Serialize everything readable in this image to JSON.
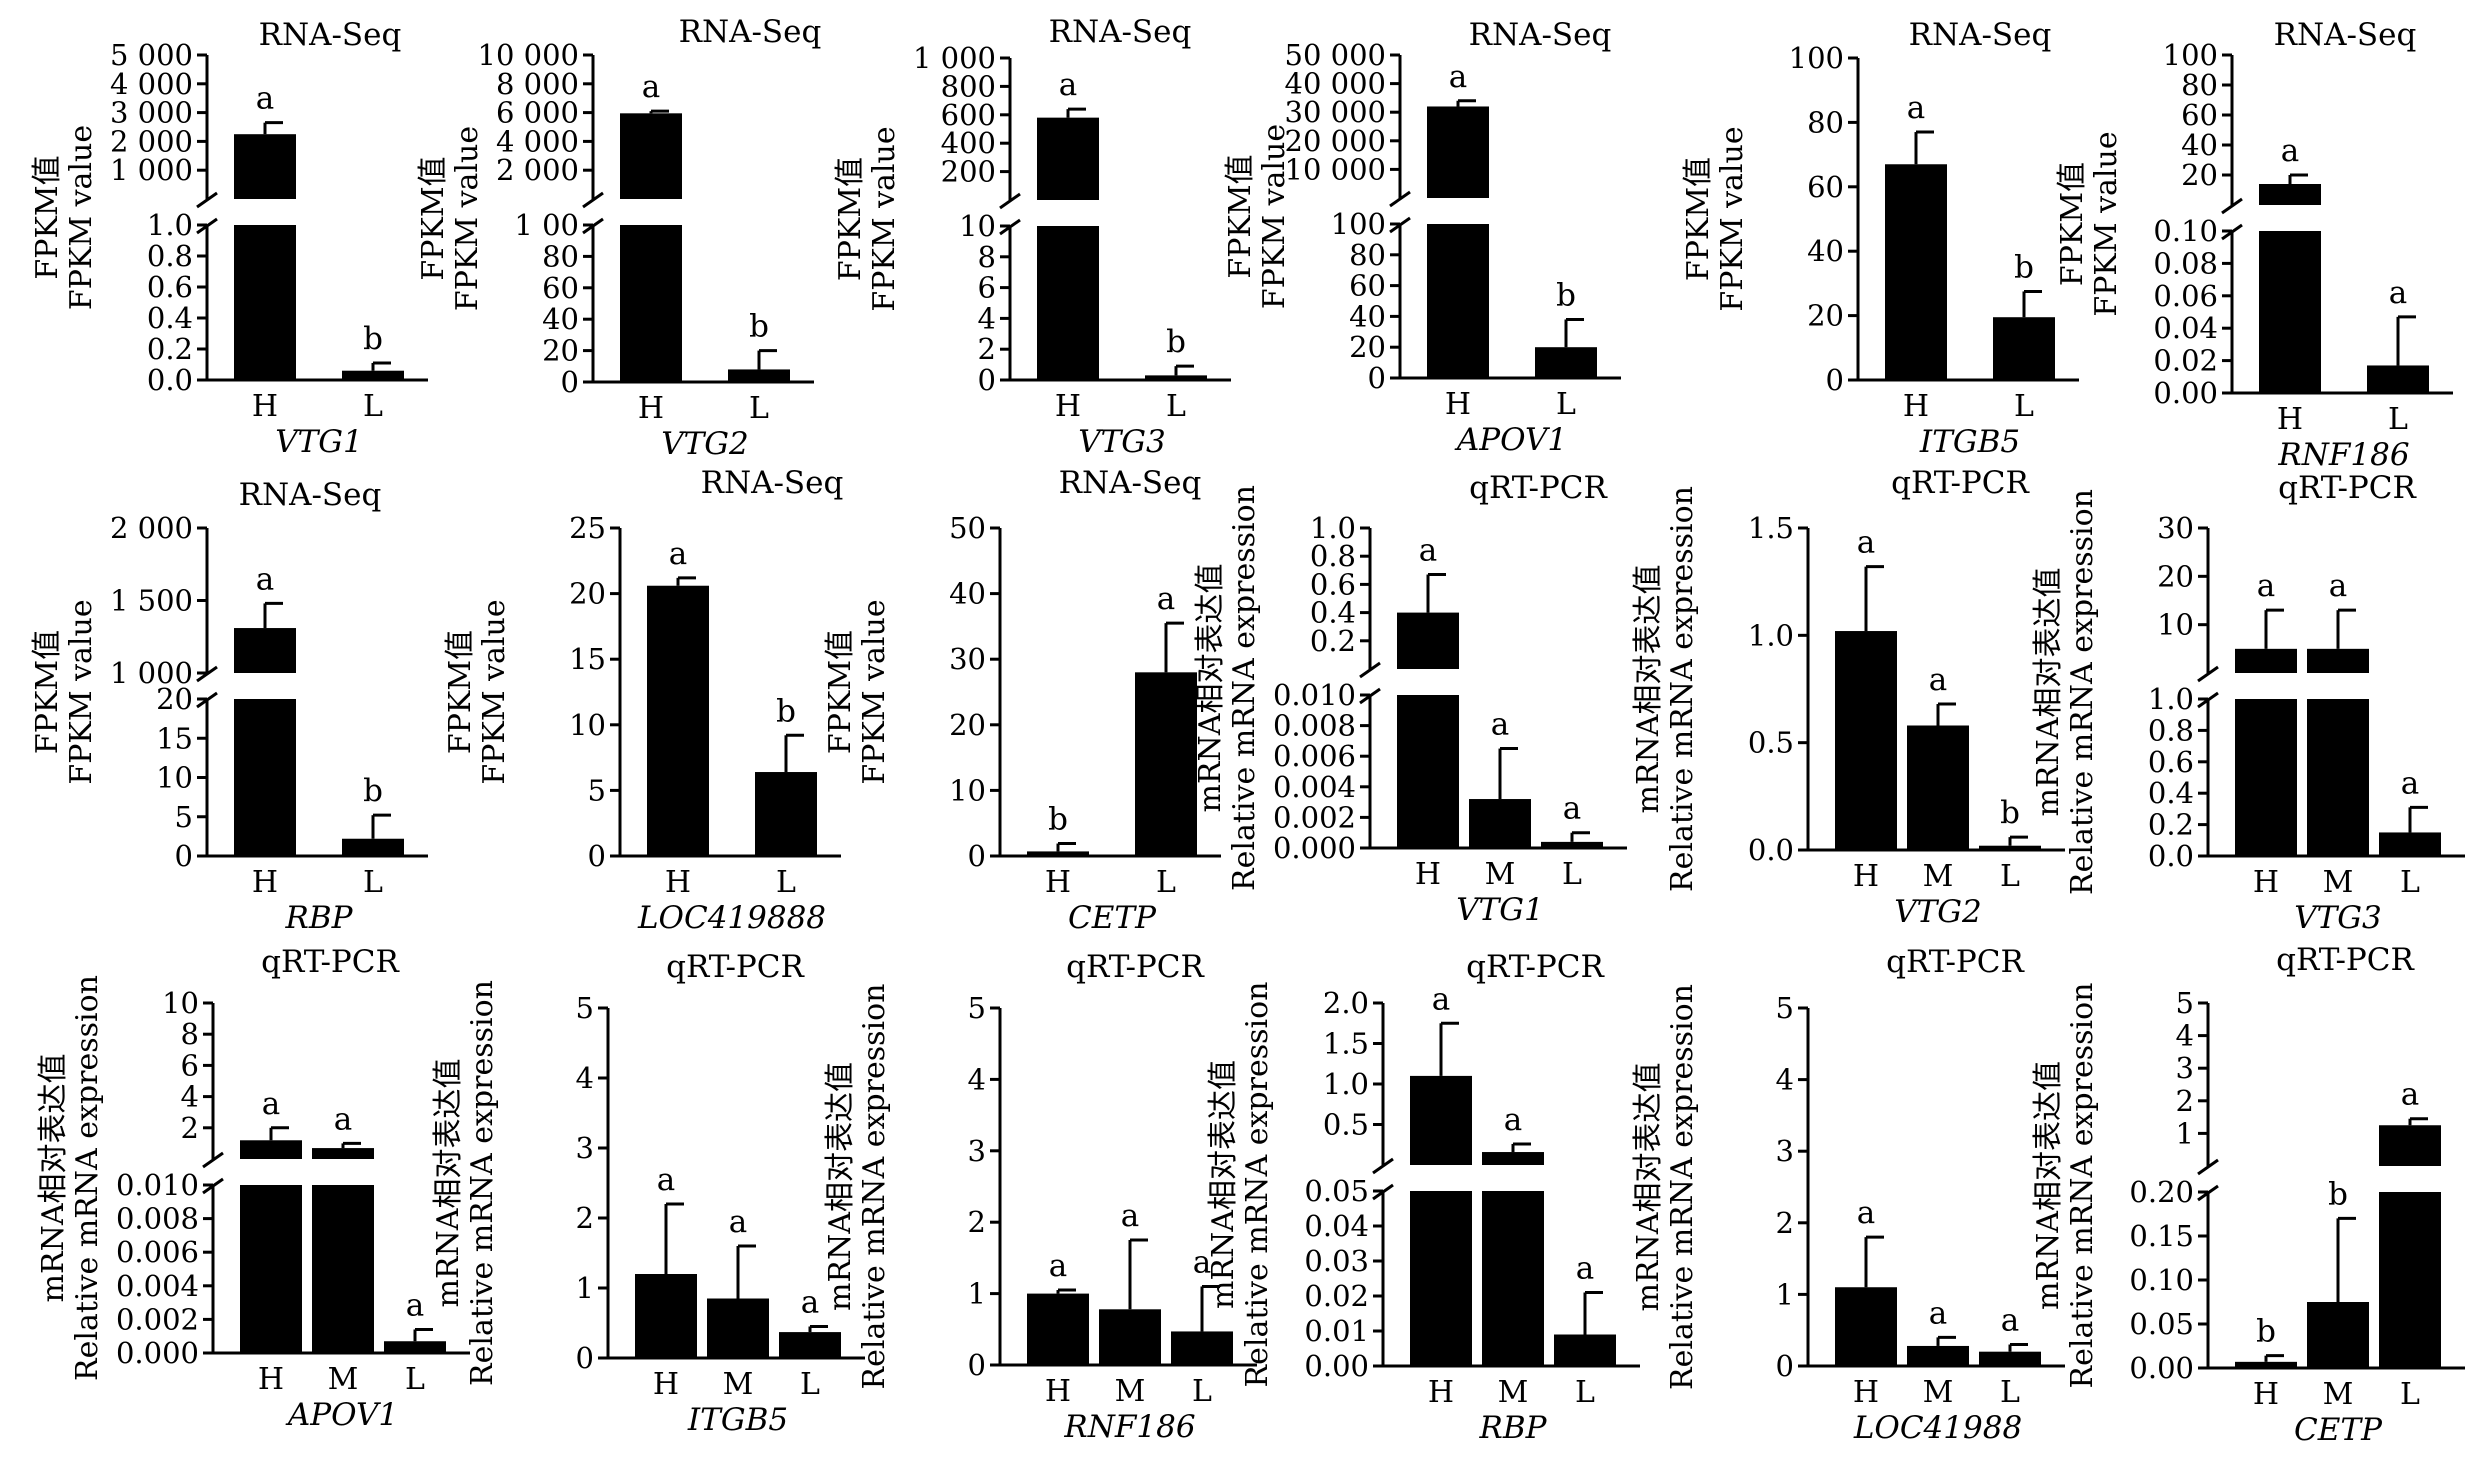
{
  "chart_data": [
    {
      "type": "bar",
      "title": "RNA-Seq",
      "gene": "VTG1",
      "ylabel": [
        "FPKM值",
        "FPKM value"
      ],
      "categories": [
        "H",
        "L"
      ],
      "values": [
        2250,
        0.06
      ],
      "errors": [
        400,
        0.05
      ],
      "letters": [
        "a",
        "b"
      ],
      "upper": {
        "ylim": [
          0,
          5000
        ],
        "ticks": [
          1000,
          2000,
          3000,
          4000,
          5000
        ],
        "tick_labels": [
          "1 000",
          "2 000",
          "3 000",
          "4 000",
          "5 000"
        ]
      },
      "lower": {
        "ylim": [
          0,
          1.0
        ],
        "ticks": [
          0,
          0.2,
          0.4,
          0.6,
          0.8,
          1.0
        ],
        "tick_labels": [
          "0.0",
          "0.2",
          "0.4",
          "0.6",
          "0.8",
          "1.0"
        ]
      }
    },
    {
      "type": "bar",
      "title": "RNA-Seq",
      "gene": "VTG2",
      "ylabel": [
        "FPKM值",
        "FPKM value"
      ],
      "categories": [
        "H",
        "L"
      ],
      "values": [
        5950,
        8
      ],
      "errors": [
        150,
        12
      ],
      "letters": [
        "a",
        "b"
      ],
      "upper": {
        "ylim": [
          0,
          10000
        ],
        "ticks": [
          2000,
          4000,
          6000,
          8000,
          10000
        ],
        "tick_labels": [
          "2 000",
          "4 000",
          "6 000",
          "8 000",
          "10 000"
        ]
      },
      "lower": {
        "ylim": [
          0,
          100
        ],
        "ticks": [
          0,
          20,
          40,
          60,
          80,
          100
        ],
        "tick_labels": [
          "0",
          "20",
          "40",
          "60",
          "80",
          "1 00"
        ]
      }
    },
    {
      "type": "bar",
      "title": "RNA-Seq",
      "gene": "VTG3",
      "ylabel": [
        "FPKM值",
        "FPKM value"
      ],
      "categories": [
        "H",
        "L"
      ],
      "values": [
        580,
        0.3
      ],
      "errors": [
        60,
        0.6
      ],
      "letters": [
        "a",
        "b"
      ],
      "upper": {
        "ylim": [
          0,
          1000
        ],
        "ticks": [
          200,
          400,
          600,
          800,
          1000
        ],
        "tick_labels": [
          "200",
          "400",
          "600",
          "800",
          "1 000"
        ]
      },
      "lower": {
        "ylim": [
          0,
          10
        ],
        "ticks": [
          0,
          2,
          4,
          6,
          8,
          10
        ],
        "tick_labels": [
          "0",
          "2",
          "4",
          "6",
          "8",
          "10"
        ]
      }
    },
    {
      "type": "bar",
      "title": "RNA-Seq",
      "gene": "APOV1",
      "ylabel": [
        "FPKM值",
        "FPKM value"
      ],
      "categories": [
        "H",
        "L"
      ],
      "values": [
        32000,
        20
      ],
      "errors": [
        2000,
        18
      ],
      "letters": [
        "a",
        "b"
      ],
      "upper": {
        "ylim": [
          0,
          50000
        ],
        "ticks": [
          10000,
          20000,
          30000,
          40000,
          50000
        ],
        "tick_labels": [
          "10 000",
          "20 000",
          "30 000",
          "40 000",
          "50 000"
        ]
      },
      "lower": {
        "ylim": [
          0,
          100
        ],
        "ticks": [
          0,
          20,
          40,
          60,
          80,
          100
        ],
        "tick_labels": [
          "0",
          "20",
          "40",
          "60",
          "80",
          "100"
        ]
      }
    },
    {
      "type": "bar",
      "title": "RNA-Seq",
      "gene": "ITGB5",
      "ylabel": [
        "FPKM值",
        "FPKM value"
      ],
      "categories": [
        "H",
        "L"
      ],
      "values": [
        67,
        19.5
      ],
      "errors": [
        10,
        8
      ],
      "letters": [
        "a",
        "b"
      ],
      "ylim": [
        0,
        100
      ],
      "ticks": [
        0,
        20,
        40,
        60,
        80,
        100
      ],
      "tick_labels": [
        "0",
        "20",
        "40",
        "60",
        "80",
        "100"
      ]
    },
    {
      "type": "bar",
      "title": "RNA-Seq",
      "gene": "RNF186",
      "ylabel": [
        "FPKM值",
        "FPKM value"
      ],
      "categories": [
        "H",
        "L"
      ],
      "values": [
        14,
        0.017
      ],
      "errors": [
        6,
        0.03
      ],
      "letters": [
        "a",
        "a"
      ],
      "upper": {
        "ylim": [
          0,
          100
        ],
        "ticks": [
          20,
          40,
          60,
          80,
          100
        ],
        "tick_labels": [
          "20",
          "40",
          "60",
          "80",
          "100"
        ]
      },
      "lower": {
        "ylim": [
          0,
          0.1
        ],
        "ticks": [
          0,
          0.02,
          0.04,
          0.06,
          0.08,
          0.1
        ],
        "tick_labels": [
          "0.00",
          "0.02",
          "0.04",
          "0.06",
          "0.08",
          "0.10"
        ]
      }
    },
    {
      "type": "bar",
      "title": "RNA-Seq",
      "gene": "RBP",
      "ylabel": [
        "FPKM值",
        "FPKM value"
      ],
      "categories": [
        "H",
        "L"
      ],
      "values": [
        1310,
        2.2
      ],
      "errors": [
        170,
        3
      ],
      "letters": [
        "a",
        "b"
      ],
      "upper": {
        "ylim": [
          1000,
          2000
        ],
        "ticks": [
          1000,
          1500,
          2000
        ],
        "tick_labels": [
          "1 000",
          "1 500",
          "2 000"
        ]
      },
      "lower": {
        "ylim": [
          0,
          20
        ],
        "ticks": [
          0,
          5,
          10,
          15,
          20
        ],
        "tick_labels": [
          "0",
          "5",
          "10",
          "15",
          "20"
        ]
      }
    },
    {
      "type": "bar",
      "title": "RNA-Seq",
      "gene": "LOC419888",
      "ylabel": [
        "FPKM值",
        "FPKM value"
      ],
      "categories": [
        "H",
        "L"
      ],
      "values": [
        20.6,
        6.4
      ],
      "errors": [
        0.6,
        2.8
      ],
      "letters": [
        "a",
        "b"
      ],
      "ylim": [
        0,
        25
      ],
      "ticks": [
        0,
        5,
        10,
        15,
        20,
        25
      ],
      "tick_labels": [
        "0",
        "5",
        "10",
        "15",
        "20",
        "25"
      ]
    },
    {
      "type": "bar",
      "title": "RNA-Seq",
      "gene": "CETP",
      "ylabel": [
        "FPKM值",
        "FPKM value"
      ],
      "categories": [
        "H",
        "L"
      ],
      "values": [
        0.7,
        28
      ],
      "errors": [
        1.2,
        7.5
      ],
      "letters": [
        "b",
        "a"
      ],
      "ylim": [
        0,
        50
      ],
      "ticks": [
        0,
        10,
        20,
        30,
        40,
        50
      ],
      "tick_labels": [
        "0",
        "10",
        "20",
        "30",
        "40",
        "50"
      ]
    },
    {
      "type": "bar",
      "title": "qRT-PCR",
      "gene": "VTG1",
      "ylabel": [
        "mRNA相对表达值",
        "Relative mRNA expression"
      ],
      "categories": [
        "H",
        "M",
        "L"
      ],
      "values": [
        0.4,
        0.0032,
        0.0004
      ],
      "errors": [
        0.27,
        0.0033,
        0.0006
      ],
      "letters": [
        "a",
        "a",
        "a"
      ],
      "upper": {
        "ylim": [
          0,
          1.0
        ],
        "ticks": [
          0.2,
          0.4,
          0.6,
          0.8,
          1.0
        ],
        "tick_labels": [
          "0.2",
          "0.4",
          "0.6",
          "0.8",
          "1.0"
        ]
      },
      "lower": {
        "ylim": [
          0,
          0.01
        ],
        "ticks": [
          0,
          0.002,
          0.004,
          0.006,
          0.008,
          0.01
        ],
        "tick_labels": [
          "0.000",
          "0.002",
          "0.004",
          "0.006",
          "0.008",
          "0.010"
        ]
      }
    },
    {
      "type": "bar",
      "title": "qRT-PCR",
      "gene": "VTG2",
      "ylabel": [
        "mRNA相对表达值",
        "Relative mRNA expression"
      ],
      "categories": [
        "H",
        "M",
        "L"
      ],
      "values": [
        1.02,
        0.58,
        0.02
      ],
      "errors": [
        0.3,
        0.1,
        0.04
      ],
      "letters": [
        "a",
        "a",
        "b"
      ],
      "ylim": [
        0,
        1.5
      ],
      "ticks": [
        0,
        0.5,
        1.0,
        1.5
      ],
      "tick_labels": [
        "0.0",
        "0.5",
        "1.0",
        "1.5"
      ]
    },
    {
      "type": "bar",
      "title": "qRT-PCR",
      "gene": "VTG3",
      "ylabel": [
        "mRNA相对表达值",
        "Relative mRNA expression"
      ],
      "categories": [
        "H",
        "M",
        "L"
      ],
      "values": [
        5,
        5,
        0.15
      ],
      "errors": [
        8,
        8,
        0.16
      ],
      "letters": [
        "a",
        "a",
        "a"
      ],
      "upper": {
        "ylim": [
          0,
          30
        ],
        "ticks": [
          10,
          20,
          30
        ],
        "tick_labels": [
          "10",
          "20",
          "30"
        ]
      },
      "lower": {
        "ylim": [
          0,
          1.0
        ],
        "ticks": [
          0,
          0.2,
          0.4,
          0.6,
          0.8,
          1.0
        ],
        "tick_labels": [
          "0.0",
          "0.2",
          "0.4",
          "0.6",
          "0.8",
          "1.0"
        ]
      }
    },
    {
      "type": "bar",
      "title": "qRT-PCR",
      "gene": "APOV1",
      "ylabel": [
        "mRNA相对表达值",
        "Relative mRNA expression"
      ],
      "categories": [
        "H",
        "M",
        "L"
      ],
      "values": [
        1.2,
        0.7,
        0.0007
      ],
      "errors": [
        0.8,
        0.3,
        0.0007
      ],
      "letters": [
        "a",
        "a",
        "a"
      ],
      "upper": {
        "ylim": [
          0,
          10
        ],
        "ticks": [
          2,
          4,
          6,
          8,
          10
        ],
        "tick_labels": [
          "2",
          "4",
          "6",
          "8",
          "10"
        ]
      },
      "lower": {
        "ylim": [
          0,
          0.01
        ],
        "ticks": [
          0,
          0.002,
          0.004,
          0.006,
          0.008,
          0.01
        ],
        "tick_labels": [
          "0.000",
          "0.002",
          "0.004",
          "0.006",
          "0.008",
          "0.010"
        ]
      }
    },
    {
      "type": "bar",
      "title": "qRT-PCR",
      "gene": "ITGB5",
      "ylabel": [
        "mRNA相对表达值",
        "Relative mRNA expression"
      ],
      "categories": [
        "H",
        "M",
        "L"
      ],
      "values": [
        1.2,
        0.85,
        0.37
      ],
      "errors": [
        1.0,
        0.75,
        0.08
      ],
      "letters": [
        "a",
        "a",
        "a"
      ],
      "ylim": [
        0,
        5
      ],
      "ticks": [
        0,
        1,
        2,
        3,
        4,
        5
      ],
      "tick_labels": [
        "0",
        "1",
        "2",
        "3",
        "4",
        "5"
      ]
    },
    {
      "type": "bar",
      "title": "qRT-PCR",
      "gene": "RNF186",
      "ylabel": [
        "mRNA相对表达值",
        "Relative mRNA expression"
      ],
      "categories": [
        "H",
        "M",
        "L"
      ],
      "values": [
        1.0,
        0.78,
        0.47
      ],
      "errors": [
        0.05,
        0.97,
        0.63
      ],
      "letters": [
        "a",
        "a",
        "a"
      ],
      "ylim": [
        0,
        5
      ],
      "ticks": [
        0,
        1,
        2,
        3,
        4,
        5
      ],
      "tick_labels": [
        "0",
        "1",
        "2",
        "3",
        "4",
        "5"
      ]
    },
    {
      "type": "bar",
      "title": "qRT-PCR",
      "gene": "RBP",
      "ylabel": [
        "mRNA相对表达值",
        "Relative mRNA expression"
      ],
      "categories": [
        "H",
        "M",
        "L"
      ],
      "values": [
        1.1,
        0.16,
        0.009
      ],
      "errors": [
        0.65,
        0.1,
        0.012
      ],
      "letters": [
        "a",
        "a",
        "a"
      ],
      "upper": {
        "ylim": [
          0,
          2.0
        ],
        "ticks": [
          0.5,
          1.0,
          1.5,
          2.0
        ],
        "tick_labels": [
          "0.5",
          "1.0",
          "1.5",
          "2.0"
        ]
      },
      "lower": {
        "ylim": [
          0,
          0.05
        ],
        "ticks": [
          0,
          0.01,
          0.02,
          0.03,
          0.04,
          0.05
        ],
        "tick_labels": [
          "0.00",
          "0.01",
          "0.02",
          "0.03",
          "0.04",
          "0.05"
        ]
      }
    },
    {
      "type": "bar",
      "title": "qRT-PCR",
      "gene": "LOC41988",
      "ylabel": [
        "mRNA相对表达值",
        "Relative mRNA expression"
      ],
      "categories": [
        "H",
        "M",
        "L"
      ],
      "values": [
        1.1,
        0.28,
        0.2
      ],
      "errors": [
        0.7,
        0.12,
        0.1
      ],
      "letters": [
        "a",
        "a",
        "a"
      ],
      "ylim": [
        0,
        5
      ],
      "ticks": [
        0,
        1,
        2,
        3,
        4,
        5
      ],
      "tick_labels": [
        "0",
        "1",
        "2",
        "3",
        "4",
        "5"
      ]
    },
    {
      "type": "bar",
      "title": "qRT-PCR",
      "gene": "CETP",
      "ylabel": [
        "mRNA相对表达值",
        "Relative mRNA expression"
      ],
      "categories": [
        "H",
        "M",
        "L"
      ],
      "values": [
        0.007,
        0.075,
        1.25
      ],
      "errors": [
        0.007,
        0.095,
        0.2
      ],
      "letters": [
        "b",
        "b",
        "a"
      ],
      "upper": {
        "ylim": [
          0,
          5
        ],
        "ticks": [
          1,
          2,
          3,
          4,
          5
        ],
        "tick_labels": [
          "1",
          "2",
          "3",
          "4",
          "5"
        ]
      },
      "lower": {
        "ylim": [
          0,
          0.2
        ],
        "ticks": [
          0,
          0.05,
          0.1,
          0.15,
          0.2
        ],
        "tick_labels": [
          "0.00",
          "0.05",
          "0.10",
          "0.15",
          "0.20"
        ]
      }
    }
  ]
}
